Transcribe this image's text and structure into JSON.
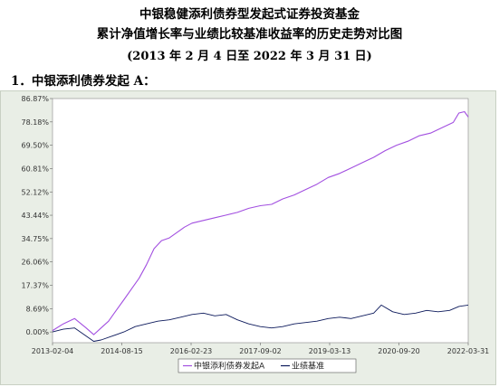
{
  "header": {
    "title_line1": "中银稳健添利债券型发起式证券投资基金",
    "title_line2": "累计净值增长率与业绩比较基准收益率的历史走势对比图",
    "date_range": "(2013 年 2 月 4 日至 2022 年 3 月 31 日)"
  },
  "section_label": "1．中银添利债券发起 A：",
  "colors": {
    "fund": "#a24fe0",
    "benchmark": "#0d1a5c",
    "plot_bg": "#ffffff",
    "panel_bg": "#e9eee6"
  },
  "chart_data": {
    "type": "line",
    "title": "",
    "xlabel": "",
    "ylabel": "",
    "y_ticks": [
      "0.00%",
      "8.69%",
      "17.37%",
      "26.06%",
      "34.75%",
      "43.44%",
      "52.12%",
      "60.81%",
      "69.50%",
      "78.18%",
      "86.87%"
    ],
    "y_tick_values": [
      0,
      8.69,
      17.37,
      26.06,
      34.75,
      43.44,
      52.12,
      60.81,
      69.5,
      78.18,
      86.87
    ],
    "ylim": [
      -4,
      86.87
    ],
    "x_ticks": [
      "2013-02-04",
      "2014-08-15",
      "2016-02-23",
      "2017-09-02",
      "2019-03-13",
      "2020-09-20",
      "2022-03-31"
    ],
    "xlim": [
      "2013-02-04",
      "2022-03-31"
    ],
    "grid": false,
    "legend_position": "bottom",
    "series": [
      {
        "name": "中银添利债券发起A",
        "x": [
          "2013-02-04",
          "2013-05-01",
          "2013-08-01",
          "2013-11-01",
          "2014-01-01",
          "2014-03-01",
          "2014-05-01",
          "2014-07-01",
          "2014-09-01",
          "2014-11-01",
          "2015-01-01",
          "2015-03-01",
          "2015-05-01",
          "2015-07-01",
          "2015-09-01",
          "2015-11-01",
          "2016-01-01",
          "2016-03-01",
          "2016-06-01",
          "2016-09-01",
          "2016-12-01",
          "2017-03-01",
          "2017-06-01",
          "2017-09-01",
          "2017-12-01",
          "2018-03-01",
          "2018-06-01",
          "2018-09-01",
          "2018-12-01",
          "2019-03-01",
          "2019-06-01",
          "2019-09-01",
          "2019-12-01",
          "2020-03-01",
          "2020-06-01",
          "2020-09-01",
          "2020-12-01",
          "2021-03-01",
          "2021-06-01",
          "2021-09-01",
          "2021-12-01",
          "2022-01-15",
          "2022-03-01",
          "2022-03-31"
        ],
        "y": [
          0.5,
          3.0,
          5.0,
          1.5,
          -1.0,
          1.5,
          4.0,
          8.0,
          12.0,
          16.0,
          20.0,
          25.0,
          31.0,
          34.0,
          35.0,
          37.0,
          39.0,
          40.5,
          41.5,
          42.5,
          43.5,
          44.5,
          46.0,
          47.0,
          47.5,
          49.5,
          51.0,
          53.0,
          55.0,
          57.5,
          59.0,
          61.0,
          63.0,
          65.0,
          67.5,
          69.5,
          71.0,
          73.0,
          74.0,
          76.0,
          78.0,
          81.5,
          82.0,
          80.0
        ]
      },
      {
        "name": "业绩基准",
        "x": [
          "2013-02-04",
          "2013-05-01",
          "2013-08-01",
          "2013-11-01",
          "2014-01-01",
          "2014-03-01",
          "2014-06-01",
          "2014-09-01",
          "2014-12-01",
          "2015-03-01",
          "2015-06-01",
          "2015-09-01",
          "2015-12-01",
          "2016-03-01",
          "2016-06-01",
          "2016-09-01",
          "2016-12-01",
          "2017-03-01",
          "2017-06-01",
          "2017-09-01",
          "2017-12-01",
          "2018-03-01",
          "2018-06-01",
          "2018-09-01",
          "2018-12-01",
          "2019-03-01",
          "2019-06-01",
          "2019-09-01",
          "2019-12-01",
          "2020-03-01",
          "2020-05-01",
          "2020-08-01",
          "2020-11-01",
          "2021-02-01",
          "2021-05-01",
          "2021-08-01",
          "2021-11-01",
          "2022-01-15",
          "2022-03-31"
        ],
        "y": [
          0.0,
          1.0,
          1.5,
          -1.5,
          -3.5,
          -3.0,
          -1.5,
          0.0,
          2.0,
          3.0,
          4.0,
          4.5,
          5.5,
          6.5,
          7.0,
          6.0,
          6.5,
          4.5,
          3.0,
          2.0,
          1.5,
          2.0,
          3.0,
          3.5,
          4.0,
          5.0,
          5.5,
          5.0,
          6.0,
          7.0,
          10.0,
          7.5,
          6.5,
          7.0,
          8.0,
          7.5,
          8.0,
          9.5,
          10.0
        ]
      }
    ]
  }
}
